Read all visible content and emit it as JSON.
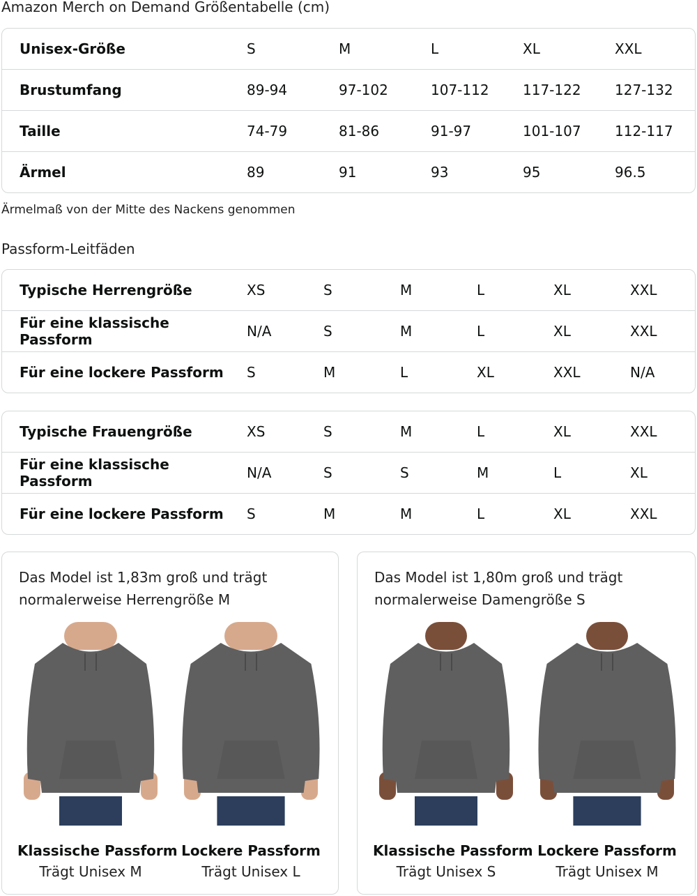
{
  "title": "Amazon Merch on Demand Größentabelle (cm)",
  "size_table": {
    "rows": [
      {
        "label": "Unisex-Größe",
        "values": [
          "S",
          "M",
          "L",
          "XL",
          "XXL"
        ]
      },
      {
        "label": "Brustumfang",
        "values": [
          "89-94",
          "97-102",
          "107-112",
          "117-122",
          "127-132"
        ]
      },
      {
        "label": "Taille",
        "values": [
          "74-79",
          "81-86",
          "91-97",
          "101-107",
          "112-117"
        ]
      },
      {
        "label": "Ärmel",
        "values": [
          "89",
          "91",
          "93",
          "95",
          "96.5"
        ]
      }
    ]
  },
  "note": "Ärmelmaß von der Mitte des Nackens genommen",
  "fit_heading": "Passform-Leitfäden",
  "men_table": {
    "rows": [
      {
        "label": "Typische Herrengröße",
        "values": [
          "XS",
          "S",
          "M",
          "L",
          "XL",
          "XXL"
        ]
      },
      {
        "label": "Für eine klassische Passform",
        "values": [
          "N/A",
          "S",
          "M",
          "L",
          "XL",
          "XXL"
        ]
      },
      {
        "label": "Für eine lockere Passform",
        "values": [
          "S",
          "M",
          "L",
          "XL",
          "XXL",
          "N/A"
        ]
      }
    ]
  },
  "women_table": {
    "rows": [
      {
        "label": "Typische Frauengröße",
        "values": [
          "XS",
          "S",
          "M",
          "L",
          "XL",
          "XXL"
        ]
      },
      {
        "label": "Für eine klassische Passform",
        "values": [
          "N/A",
          "S",
          "S",
          "M",
          "L",
          "XL"
        ]
      },
      {
        "label": "Für eine lockere Passform",
        "values": [
          "S",
          "M",
          "M",
          "L",
          "XL",
          "XXL"
        ]
      }
    ]
  },
  "cards": [
    {
      "caption": "Das Model ist 1,83m groß und trägt normalerweise Herrengröße M",
      "figures": [
        {
          "title": "Klassische Passform",
          "sub": "Trägt Unisex M"
        },
        {
          "title": "Lockere Passform",
          "sub": "Trägt Unisex L"
        }
      ]
    },
    {
      "caption": "Das Model ist 1,80m groß und trägt normalerweise Damengröße S",
      "figures": [
        {
          "title": "Klassische Passform",
          "sub": "Trägt Unisex S"
        },
        {
          "title": "Lockere Passform",
          "sub": "Trägt Unisex M"
        }
      ]
    }
  ],
  "colors": {
    "hoodie": "#5f5f5f",
    "jeans": "#2c3e5c",
    "border": "#d5d9d9"
  }
}
